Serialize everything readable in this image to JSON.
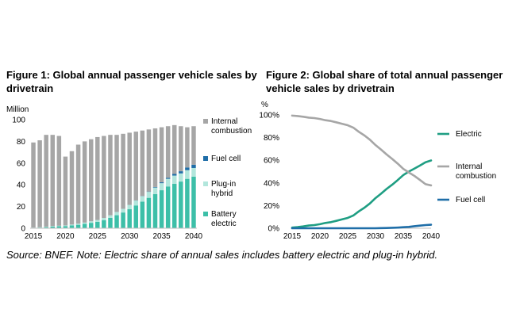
{
  "figure1": {
    "title": "Figure 1: Global annual passenger vehicle sales by drivetrain",
    "chart_data": {
      "type": "bar",
      "stacked": true,
      "title": "Figure 1: Global annual passenger vehicle sales by drivetrain",
      "ylabel": "Million",
      "xlabel": "",
      "ylim": [
        0,
        100
      ],
      "yticks": [
        0,
        20,
        40,
        60,
        80,
        100
      ],
      "xtick_labels": [
        "2015",
        "2020",
        "2025",
        "2030",
        "2035",
        "2040"
      ],
      "categories": [
        2015,
        2016,
        2017,
        2018,
        2019,
        2020,
        2021,
        2022,
        2023,
        2024,
        2025,
        2026,
        2027,
        2028,
        2029,
        2030,
        2031,
        2032,
        2033,
        2034,
        2035,
        2036,
        2037,
        2038,
        2039,
        2040
      ],
      "series": [
        {
          "name": "Battery electric",
          "color": "#3dbfa8",
          "values": [
            0.4,
            0.6,
            1.0,
            1.5,
            1.8,
            2.0,
            2.6,
            3.2,
            4.0,
            5.0,
            6.0,
            7.5,
            9.5,
            12,
            14.5,
            17.5,
            21,
            24.5,
            28,
            31.5,
            35,
            38.5,
            41,
            43,
            45.5,
            47.5
          ]
        },
        {
          "name": "Plug-in hybrid",
          "color": "#b2e6dc",
          "values": [
            0.2,
            0.3,
            0.4,
            0.5,
            0.5,
            0.6,
            0.8,
            1.0,
            1.2,
            1.4,
            1.6,
            2.0,
            2.4,
            3.0,
            3.4,
            4.0,
            4.5,
            5.0,
            5.5,
            6.0,
            6.5,
            7.0,
            7.5,
            7.5,
            8.0,
            8.0
          ]
        },
        {
          "name": "Fuel cell",
          "color": "#1f6ea8",
          "values": [
            0,
            0,
            0,
            0,
            0,
            0,
            0,
            0,
            0,
            0,
            0,
            0,
            0,
            0,
            0,
            0,
            0.1,
            0.2,
            0.3,
            0.5,
            0.8,
            1.0,
            1.5,
            2.0,
            2.5,
            3.0
          ]
        },
        {
          "name": "Internal combustion",
          "color": "#a6a6a6",
          "values": [
            78.4,
            80.1,
            84.6,
            84,
            82.7,
            63.4,
            67.6,
            72.8,
            74.8,
            75.6,
            76.4,
            75.5,
            74.1,
            71,
            69.1,
            66.5,
            63.4,
            60.3,
            57.2,
            54,
            50.7,
            47.5,
            45,
            41.5,
            37,
            35.5
          ]
        }
      ],
      "legend": "right",
      "grid": false
    },
    "legend_labels": [
      {
        "line1": "Internal",
        "line2": "combustion",
        "color": "#a6a6a6"
      },
      {
        "line1": "Fuel cell",
        "line2": "",
        "color": "#1f6ea8"
      },
      {
        "line1": "Plug-in",
        "line2": "hybrid",
        "color": "#b2e6dc"
      },
      {
        "line1": "Battery",
        "line2": "electric",
        "color": "#3dbfa8"
      }
    ]
  },
  "figure2": {
    "title": "Figure 2: Global share of total annual passenger vehicle sales by drivetrain",
    "chart_data": {
      "type": "line",
      "title": "Figure 2: Global share of total annual passenger vehicle sales by drivetrain",
      "ylabel": "%",
      "xlabel": "",
      "ylim": [
        0,
        100
      ],
      "yticks": [
        0,
        20,
        40,
        60,
        80,
        100
      ],
      "ytick_labels": [
        "0%",
        "20%",
        "40%",
        "60%",
        "80%",
        "100%"
      ],
      "xtick_labels": [
        "2015",
        "2020",
        "2025",
        "2030",
        "2035",
        "2040"
      ],
      "x": [
        2015,
        2016,
        2017,
        2018,
        2019,
        2020,
        2021,
        2022,
        2023,
        2024,
        2025,
        2026,
        2027,
        2028,
        2029,
        2030,
        2031,
        2032,
        2033,
        2034,
        2035,
        2036,
        2037,
        2038,
        2039,
        2040
      ],
      "series": [
        {
          "name": "Electric",
          "color": "#1f9e83",
          "values": [
            0.6,
            1,
            1.6,
            2.4,
            2.8,
            3.6,
            4.7,
            5.4,
            6.6,
            7.9,
            9.1,
            11.2,
            14.9,
            18.1,
            21.9,
            26.6,
            30.5,
            34.7,
            38.4,
            42.5,
            46.9,
            50,
            52.6,
            55.3,
            58.2,
            59.8
          ]
        },
        {
          "name": "Internal combustion",
          "color": "#a6a6a6",
          "values": [
            99.4,
            99,
            98.4,
            97.6,
            97.2,
            96.4,
            95.3,
            94.6,
            93.4,
            92.1,
            90.9,
            88.8,
            85.1,
            81.9,
            78.1,
            73.4,
            69.4,
            65.1,
            61.2,
            57,
            52.4,
            49.2,
            46.2,
            42.6,
            38.9,
            37.8
          ]
        },
        {
          "name": "Fuel cell",
          "color": "#1f6ea8",
          "values": [
            0,
            0,
            0,
            0,
            0,
            0,
            0,
            0,
            0,
            0,
            0,
            0,
            0,
            0,
            0,
            0,
            0.1,
            0.2,
            0.4,
            0.6,
            0.9,
            1.2,
            1.8,
            2.3,
            2.8,
            3.1
          ]
        }
      ],
      "legend": "right",
      "grid": false
    },
    "legend_labels": [
      {
        "line1": "Electric",
        "line2": "",
        "color": "#1f9e83"
      },
      {
        "line1": "Internal",
        "line2": "combustion",
        "color": "#a6a6a6"
      },
      {
        "line1": "Fuel cell",
        "line2": "",
        "color": "#1f6ea8"
      }
    ]
  },
  "source_note": "Source: BNEF. Note: Electric share of annual sales includes battery electric and plug-in hybrid."
}
